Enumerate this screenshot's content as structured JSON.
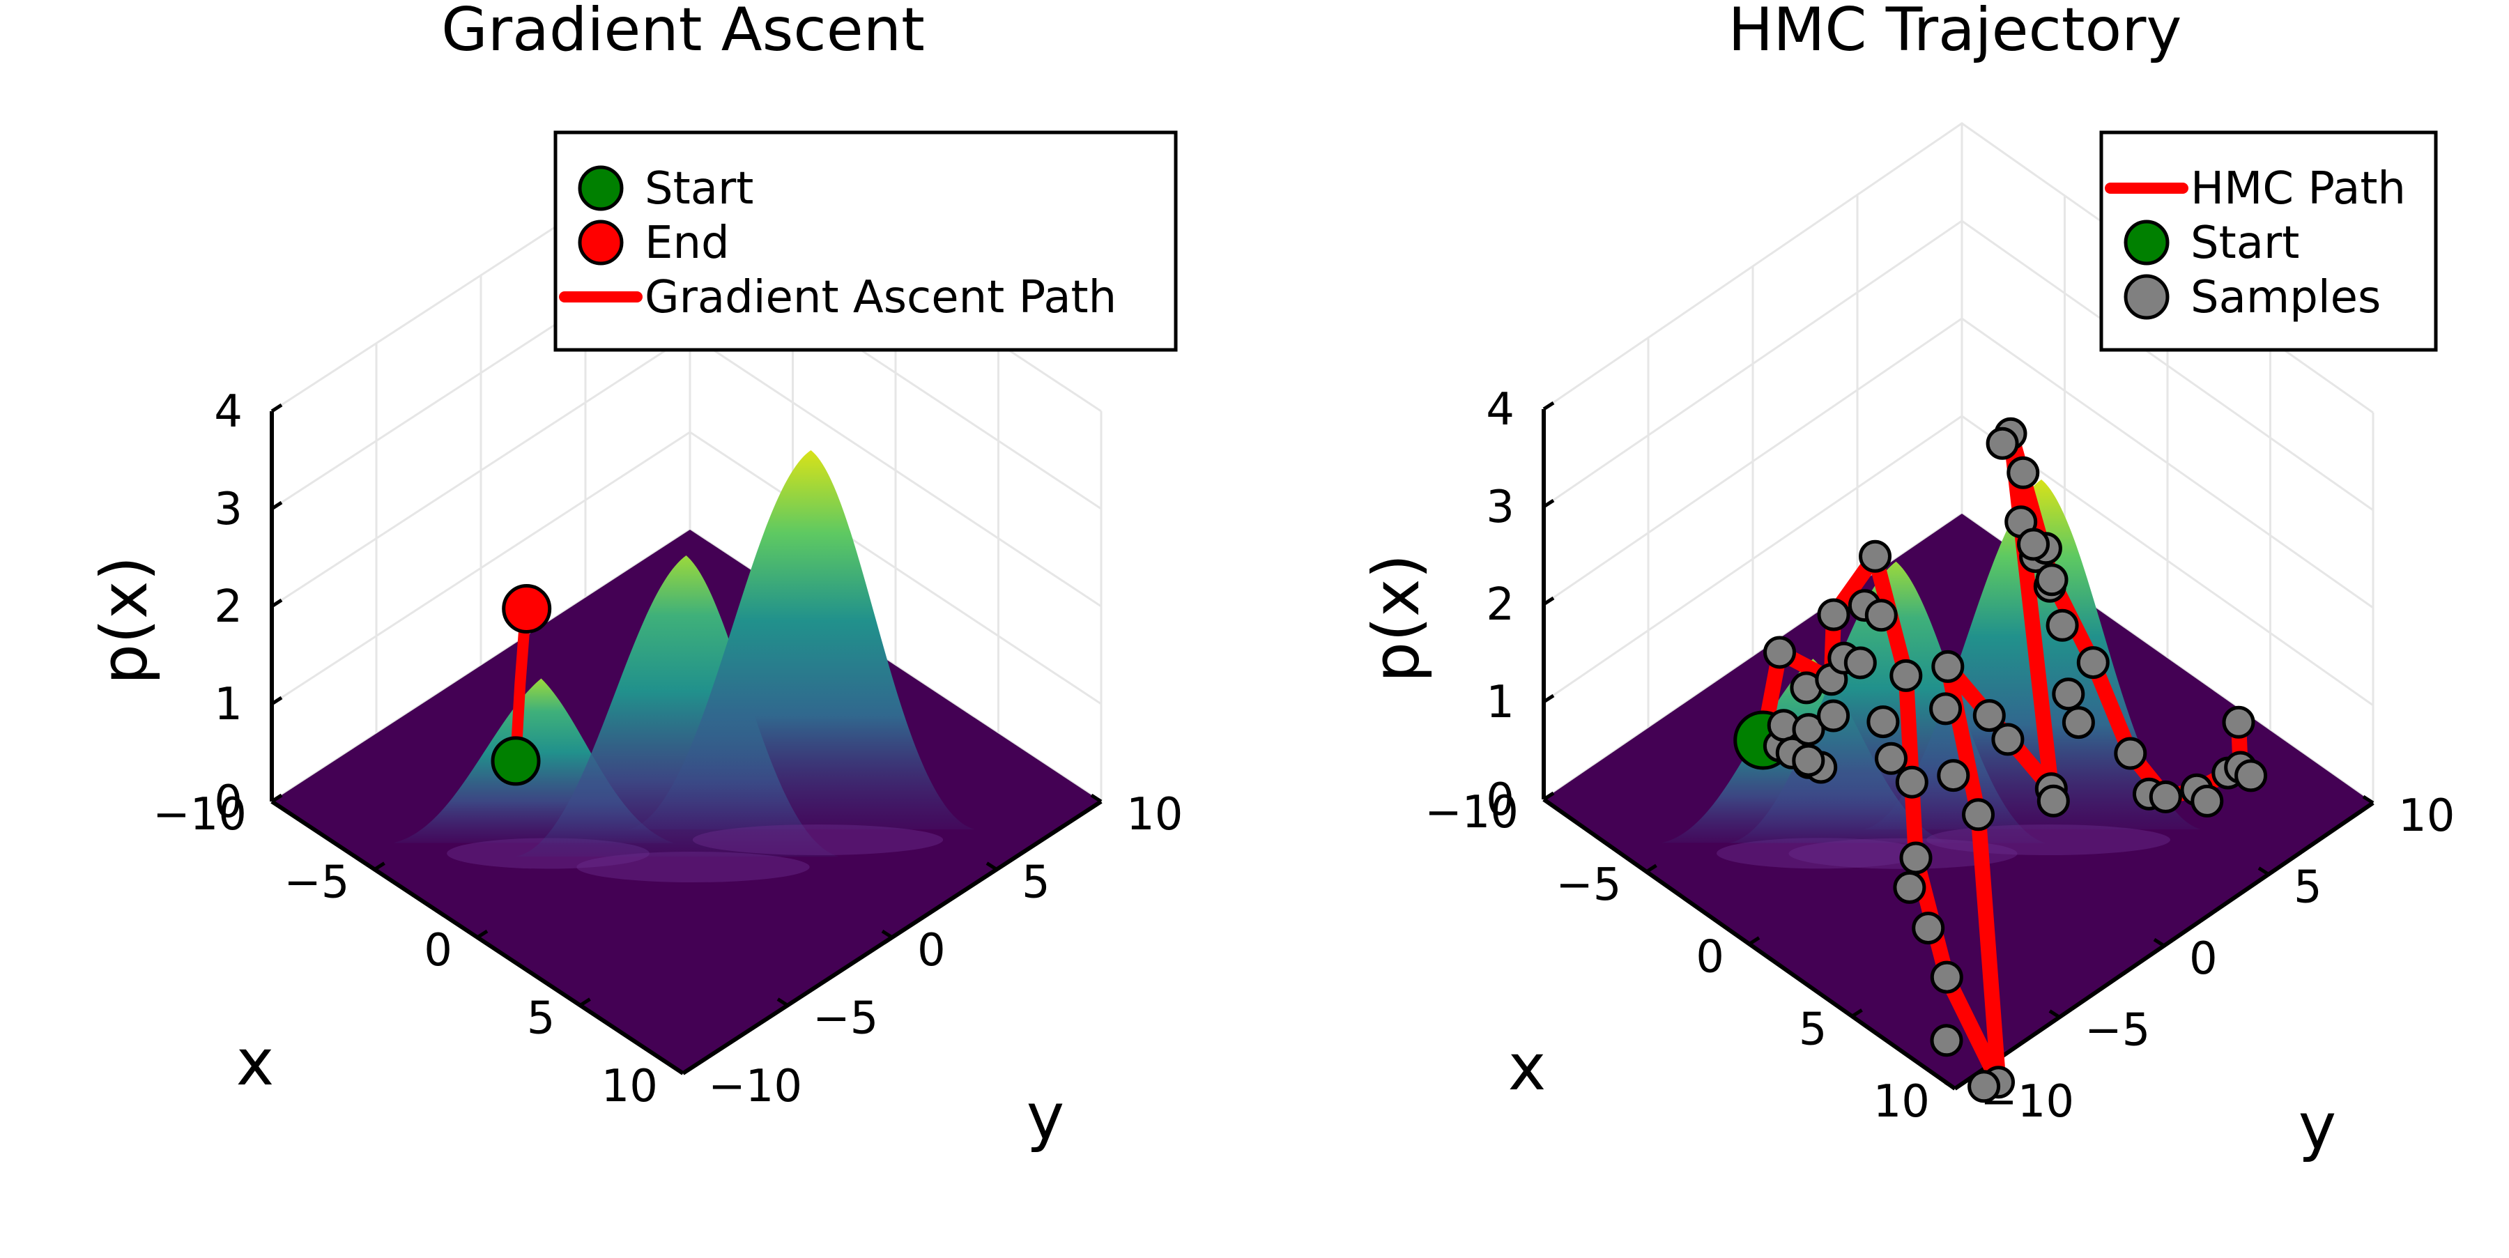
{
  "colors": {
    "floor": "#440154",
    "start": "#008000",
    "end": "#ff0000",
    "path": "#ff0000",
    "samples": "#808080",
    "colormap": [
      "#440154",
      "#3b528b",
      "#21918c",
      "#5ec962",
      "#fde725"
    ]
  },
  "chart_data": [
    {
      "type": "surface3d",
      "title": "Gradient Ascent",
      "xlabel": "x",
      "ylabel": "y",
      "zlabel": "p(x)",
      "xlim": [
        -10,
        10
      ],
      "ylim": [
        -10,
        10
      ],
      "zlim": [
        0,
        4
      ],
      "x_ticks": [
        "−10",
        "−5",
        "0",
        "5",
        "10"
      ],
      "y_ticks": [
        "−10",
        "−5",
        "0",
        "5",
        "10"
      ],
      "z_ticks": [
        "0",
        "1",
        "2",
        "3",
        "4"
      ],
      "grid": true,
      "colormap": "viridis",
      "surface_peaks": [
        {
          "x": -3,
          "y": -4,
          "height": 1.4
        },
        {
          "x": 1,
          "y": -1,
          "height": 2.8
        },
        {
          "x": 3,
          "y": 3,
          "height": 3.6
        }
      ],
      "legend_position": "top-right",
      "legend": [
        {
          "label": "Start",
          "kind": "marker",
          "color": "#008000"
        },
        {
          "label": "End",
          "kind": "marker",
          "color": "#ff0000"
        },
        {
          "label": "Gradient Ascent Path",
          "kind": "line",
          "color": "#ff0000"
        }
      ],
      "series": [
        {
          "name": "Gradient Ascent Path",
          "type": "line3d",
          "points": [
            [
              -2.0,
              -6.2,
              1.0
            ],
            [
              -2.3,
              -5.8,
              1.3
            ],
            [
              -2.6,
              -5.4,
              1.6
            ],
            [
              -2.9,
              -5.0,
              1.8
            ],
            [
              -3.2,
              -4.6,
              2.0
            ],
            [
              -3.4,
              -4.3,
              2.1
            ]
          ]
        },
        {
          "name": "Start",
          "type": "scatter3d",
          "points": [
            [
              -2.0,
              -6.2,
              1.0
            ]
          ]
        },
        {
          "name": "End",
          "type": "scatter3d",
          "points": [
            [
              -3.4,
              -4.3,
              2.1
            ]
          ]
        }
      ]
    },
    {
      "type": "surface3d",
      "title": "HMC Trajectory",
      "xlabel": "x",
      "ylabel": "y",
      "zlabel": "p(x)",
      "xlim": [
        -10,
        10
      ],
      "ylim": [
        -10,
        10
      ],
      "zlim": [
        0,
        4
      ],
      "x_ticks": [
        "−10",
        "−5",
        "0",
        "5",
        "10"
      ],
      "y_ticks": [
        "−10",
        "−5",
        "0",
        "5",
        "10"
      ],
      "z_ticks": [
        "0",
        "1",
        "2",
        "3",
        "4"
      ],
      "grid": true,
      "colormap": "viridis",
      "surface_peaks": [
        {
          "x": -3,
          "y": -4,
          "height": 1.6
        },
        {
          "x": -1,
          "y": -2,
          "height": 2.6
        },
        {
          "x": 2,
          "y": 2,
          "height": 3.3
        }
      ],
      "legend_position": "top-right",
      "legend": [
        {
          "label": "HMC Path",
          "kind": "line",
          "color": "#ff0000"
        },
        {
          "label": "Start",
          "kind": "marker",
          "color": "#008000"
        },
        {
          "label": "Samples",
          "kind": "marker",
          "color": "#808080"
        }
      ],
      "series": [
        {
          "name": "HMC Path",
          "type": "line3d",
          "points": [
            [
              -3.4,
              -6.0,
              1.0
            ],
            [
              -3.0,
              -5.6,
              1.9
            ],
            [
              -1.5,
              -4.6,
              1.7
            ],
            [
              -2.0,
              -4.0,
              2.2
            ],
            [
              -1.0,
              -3.0,
              2.8
            ],
            [
              0.5,
              -3.0,
              1.8
            ],
            [
              2.0,
              -4.0,
              0.3
            ],
            [
              3.5,
              -4.0,
              -0.7
            ],
            [
              5.0,
              -3.0,
              -1.7
            ],
            [
              3.0,
              -2.0,
              0.6
            ],
            [
              0.5,
              -1.0,
              1.6
            ],
            [
              1.5,
              0.0,
              1.1
            ],
            [
              3.5,
              1.0,
              0.5
            ],
            [
              0.0,
              2.5,
              3.4
            ],
            [
              2.0,
              2.5,
              2.2
            ],
            [
              3.5,
              3.0,
              1.5
            ],
            [
              4.5,
              3.8,
              0.6
            ],
            [
              5.5,
              4.5,
              0.2
            ],
            [
              6.0,
              5.5,
              0.2
            ],
            [
              6.5,
              6.5,
              0.3
            ],
            [
              6.6,
              7.0,
              0.3
            ],
            [
              6.0,
              7.5,
              0.6
            ]
          ]
        },
        {
          "name": "Start",
          "type": "scatter3d",
          "points": [
            [
              -3.4,
              -6.0,
              1.0
            ]
          ]
        },
        {
          "name": "Samples",
          "type": "scatter3d",
          "points": [
            [
              -3.0,
              -5.6,
              1.9
            ],
            [
              -2.8,
              -5.8,
              1.0
            ],
            [
              -2.4,
              -6.0,
              1.3
            ],
            [
              -2.6,
              -5.4,
              0.9
            ],
            [
              -2.2,
              -5.0,
              0.8
            ],
            [
              -1.8,
              -5.5,
              1.7
            ],
            [
              -2.0,
              -5.2,
              1.2
            ],
            [
              -1.5,
              -4.6,
              1.7
            ],
            [
              -1.4,
              -5.2,
              0.9
            ],
            [
              -1.2,
              -4.8,
              1.4
            ],
            [
              -1.6,
              -5.6,
              1.0
            ],
            [
              -2.0,
              -4.0,
              2.2
            ],
            [
              -1.6,
              -3.9,
              1.8
            ],
            [
              -1.0,
              -3.0,
              2.8
            ],
            [
              -0.9,
              -3.6,
              2.4
            ],
            [
              -0.5,
              -3.2,
              2.3
            ],
            [
              -0.7,
              -4.0,
              1.9
            ],
            [
              0.5,
              -3.0,
              1.8
            ],
            [
              0.2,
              -3.8,
              1.4
            ],
            [
              1.0,
              -4.2,
              1.2
            ],
            [
              1.3,
              -3.5,
              0.9
            ],
            [
              2.0,
              -4.0,
              0.3
            ],
            [
              2.2,
              -4.5,
              0.1
            ],
            [
              2.7,
              -4.1,
              -0.3
            ],
            [
              3.5,
              -4.0,
              -0.7
            ],
            [
              4.0,
              -4.5,
              -1.2
            ],
            [
              5.0,
              -3.0,
              -1.7
            ],
            [
              4.8,
              -3.5,
              -1.7
            ],
            [
              3.0,
              -2.0,
              0.6
            ],
            [
              2.4,
              -2.6,
              1.0
            ],
            [
              0.5,
              -1.0,
              1.6
            ],
            [
              0.9,
              -1.5,
              1.3
            ],
            [
              1.5,
              0.0,
              1.1
            ],
            [
              2.1,
              0.3,
              0.9
            ],
            [
              3.5,
              1.0,
              0.5
            ],
            [
              3.3,
              1.3,
              0.3
            ],
            [
              0.0,
              2.5,
              3.4
            ],
            [
              -0.2,
              2.3,
              3.3
            ],
            [
              0.3,
              2.8,
              3.0
            ],
            [
              0.6,
              2.4,
              2.6
            ],
            [
              0.8,
              2.9,
              2.2
            ],
            [
              1.1,
              3.1,
              2.3
            ],
            [
              1.0,
              2.6,
              2.4
            ],
            [
              1.5,
              2.9,
              2.0
            ],
            [
              1.8,
              3.2,
              1.6
            ],
            [
              2.0,
              2.5,
              2.2
            ],
            [
              2.3,
              3.0,
              1.0
            ],
            [
              3.5,
              3.0,
              1.5
            ],
            [
              3.2,
              2.6,
              0.9
            ],
            [
              4.5,
              3.8,
              0.6
            ],
            [
              5.0,
              4.2,
              0.2
            ],
            [
              5.5,
              4.5,
              0.2
            ],
            [
              6.0,
              5.5,
              0.2
            ],
            [
              6.3,
              5.7,
              0.1
            ],
            [
              6.5,
              6.5,
              0.3
            ],
            [
              6.6,
              7.0,
              0.3
            ],
            [
              6.8,
              7.3,
              0.2
            ],
            [
              6.0,
              7.5,
              0.6
            ]
          ]
        }
      ]
    }
  ]
}
